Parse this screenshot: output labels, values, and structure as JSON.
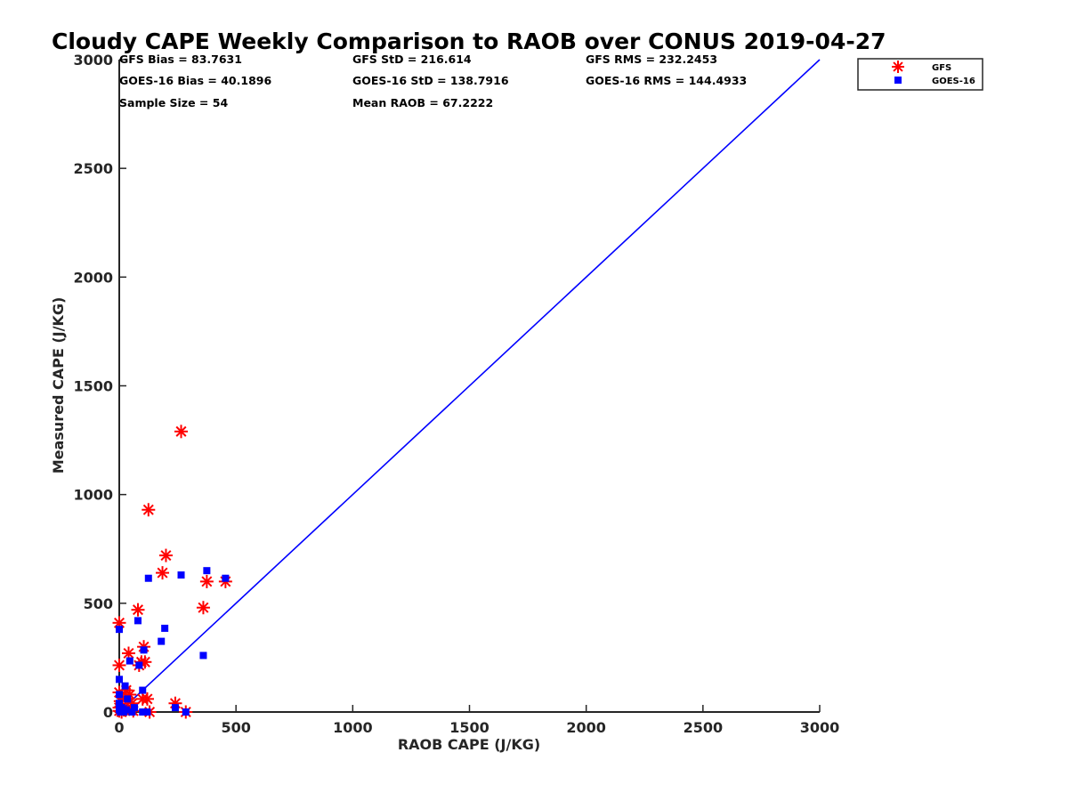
{
  "chart_data": {
    "type": "scatter",
    "title": "Cloudy CAPE Weekly Comparison to RAOB over CONUS 2019-04-27",
    "xlabel": "RAOB CAPE (J/KG)",
    "ylabel": "Measured CAPE (J/KG)",
    "xlim": [
      0,
      3000
    ],
    "ylim": [
      0,
      3000
    ],
    "xticks": [
      0,
      500,
      1000,
      1500,
      2000,
      2500,
      3000
    ],
    "yticks": [
      0,
      500,
      1000,
      1500,
      2000,
      2500,
      3000
    ],
    "xtick_labels": [
      "0",
      "500",
      "1000",
      "1500",
      "2000",
      "2500",
      "3000"
    ],
    "ytick_labels": [
      "0",
      "500",
      "1000",
      "1500",
      "2000",
      "2500",
      "3000"
    ],
    "grid": false,
    "legend_position": "top-right, outside plot",
    "reference_line": {
      "type": "one-to-one",
      "color": "#0000ff",
      "x": [
        0,
        3000
      ],
      "y": [
        0,
        3000
      ]
    },
    "stats": [
      [
        "GFS Bias = 83.7631",
        "GFS StD = 216.614",
        "GFS RMS = 232.2453"
      ],
      [
        "GOES-16 Bias = 40.1896",
        "GOES-16 StD = 138.7916",
        "GOES-16 RMS = 144.4933"
      ],
      [
        "Sample Size = 54",
        "Mean RAOB = 67.2222",
        ""
      ]
    ],
    "series": [
      {
        "name": "GFS",
        "marker": "asterisk",
        "color": "#ff0000",
        "points": [
          [
            0,
            410
          ],
          [
            0,
            215
          ],
          [
            0,
            90
          ],
          [
            0,
            20
          ],
          [
            0,
            5
          ],
          [
            5,
            50
          ],
          [
            10,
            0
          ],
          [
            20,
            10
          ],
          [
            25,
            60
          ],
          [
            30,
            100
          ],
          [
            40,
            270
          ],
          [
            45,
            80
          ],
          [
            50,
            20
          ],
          [
            55,
            40
          ],
          [
            60,
            5
          ],
          [
            80,
            470
          ],
          [
            85,
            215
          ],
          [
            95,
            230
          ],
          [
            100,
            60
          ],
          [
            105,
            300
          ],
          [
            110,
            230
          ],
          [
            120,
            60
          ],
          [
            125,
            930
          ],
          [
            130,
            0
          ],
          [
            185,
            640
          ],
          [
            200,
            720
          ],
          [
            240,
            40
          ],
          [
            265,
            1290
          ],
          [
            285,
            0
          ],
          [
            360,
            480
          ],
          [
            375,
            600
          ],
          [
            455,
            600
          ]
        ]
      },
      {
        "name": "GOES-16",
        "marker": "square",
        "color": "#0000ff",
        "points": [
          [
            0,
            380
          ],
          [
            0,
            150
          ],
          [
            0,
            80
          ],
          [
            0,
            40
          ],
          [
            0,
            10
          ],
          [
            5,
            0
          ],
          [
            10,
            20
          ],
          [
            20,
            0
          ],
          [
            25,
            120
          ],
          [
            30,
            10
          ],
          [
            35,
            60
          ],
          [
            45,
            235
          ],
          [
            55,
            0
          ],
          [
            65,
            20
          ],
          [
            80,
            420
          ],
          [
            85,
            215
          ],
          [
            100,
            0
          ],
          [
            100,
            100
          ],
          [
            105,
            285
          ],
          [
            120,
            0
          ],
          [
            125,
            615
          ],
          [
            180,
            325
          ],
          [
            195,
            385
          ],
          [
            240,
            20
          ],
          [
            265,
            630
          ],
          [
            285,
            0
          ],
          [
            360,
            260
          ],
          [
            375,
            650
          ],
          [
            455,
            615
          ]
        ]
      }
    ]
  }
}
